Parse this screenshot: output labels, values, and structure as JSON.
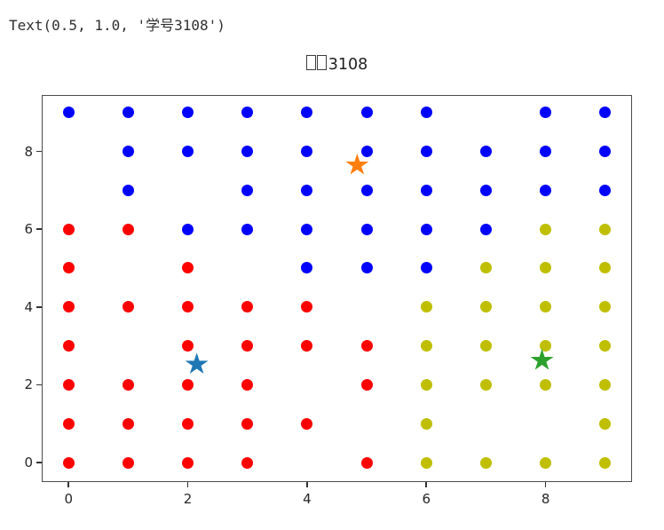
{
  "page": {
    "output_text": "Text(0.5, 1.0, '学号3108')"
  },
  "chart_data": {
    "type": "scatter",
    "title": {
      "visible_text": "3108",
      "missing_glyph_boxes": 2,
      "full_text": "学号3108"
    },
    "xlabel": "",
    "ylabel": "",
    "grid": false,
    "legend": "none",
    "xlim": [
      -0.45,
      9.45
    ],
    "ylim": [
      -0.5,
      9.45
    ],
    "x_ticks": [
      "0",
      "2",
      "4",
      "6",
      "8"
    ],
    "x_tick_values": [
      0,
      2,
      4,
      6,
      8
    ],
    "y_ticks": [
      "0",
      "2",
      "4",
      "6",
      "8"
    ],
    "y_tick_values": [
      0,
      2,
      4,
      6,
      8
    ],
    "series": [
      {
        "name": "cluster-blue",
        "marker": "circle",
        "color": "#0000ff",
        "points": [
          [
            0,
            9
          ],
          [
            1,
            9
          ],
          [
            2,
            9
          ],
          [
            3,
            9
          ],
          [
            4,
            9
          ],
          [
            5,
            9
          ],
          [
            6,
            9
          ],
          [
            8,
            9
          ],
          [
            9,
            9
          ],
          [
            1,
            8
          ],
          [
            2,
            8
          ],
          [
            3,
            8
          ],
          [
            4,
            8
          ],
          [
            5,
            8
          ],
          [
            6,
            8
          ],
          [
            7,
            8
          ],
          [
            8,
            8
          ],
          [
            9,
            8
          ],
          [
            1,
            7
          ],
          [
            3,
            7
          ],
          [
            4,
            7
          ],
          [
            5,
            7
          ],
          [
            6,
            7
          ],
          [
            7,
            7
          ],
          [
            8,
            7
          ],
          [
            9,
            7
          ],
          [
            2,
            6
          ],
          [
            3,
            6
          ],
          [
            4,
            6
          ],
          [
            5,
            6
          ],
          [
            6,
            6
          ],
          [
            7,
            6
          ],
          [
            4,
            5
          ],
          [
            5,
            5
          ],
          [
            6,
            5
          ]
        ]
      },
      {
        "name": "cluster-red",
        "marker": "circle",
        "color": "#ff0000",
        "points": [
          [
            0,
            6
          ],
          [
            1,
            6
          ],
          [
            0,
            5
          ],
          [
            2,
            5
          ],
          [
            0,
            4
          ],
          [
            1,
            4
          ],
          [
            2,
            4
          ],
          [
            3,
            4
          ],
          [
            4,
            4
          ],
          [
            0,
            3
          ],
          [
            2,
            3
          ],
          [
            3,
            3
          ],
          [
            4,
            3
          ],
          [
            5,
            3
          ],
          [
            0,
            2
          ],
          [
            1,
            2
          ],
          [
            2,
            2
          ],
          [
            3,
            2
          ],
          [
            5,
            2
          ],
          [
            0,
            1
          ],
          [
            1,
            1
          ],
          [
            2,
            1
          ],
          [
            3,
            1
          ],
          [
            4,
            1
          ],
          [
            0,
            0
          ],
          [
            1,
            0
          ],
          [
            2,
            0
          ],
          [
            3,
            0
          ],
          [
            5,
            0
          ]
        ]
      },
      {
        "name": "cluster-yellow",
        "marker": "circle",
        "color": "#bfbf00",
        "points": [
          [
            8,
            6
          ],
          [
            9,
            6
          ],
          [
            7,
            5
          ],
          [
            8,
            5
          ],
          [
            9,
            5
          ],
          [
            6,
            4
          ],
          [
            7,
            4
          ],
          [
            8,
            4
          ],
          [
            9,
            4
          ],
          [
            6,
            3
          ],
          [
            7,
            3
          ],
          [
            8,
            3
          ],
          [
            9,
            3
          ],
          [
            6,
            2
          ],
          [
            7,
            2
          ],
          [
            8,
            2
          ],
          [
            9,
            2
          ],
          [
            6,
            1
          ],
          [
            9,
            1
          ],
          [
            6,
            0
          ],
          [
            7,
            0
          ],
          [
            8,
            0
          ],
          [
            9,
            0
          ]
        ]
      },
      {
        "name": "centroid-orange",
        "marker": "star",
        "color": "#ff7f0e",
        "points": [
          [
            4.84,
            7.65
          ]
        ]
      },
      {
        "name": "centroid-blue",
        "marker": "star",
        "color": "#1f77b4",
        "points": [
          [
            2.15,
            2.53
          ]
        ]
      },
      {
        "name": "centroid-green",
        "marker": "star",
        "color": "#2ca02c",
        "points": [
          [
            7.94,
            2.63
          ]
        ]
      }
    ]
  }
}
